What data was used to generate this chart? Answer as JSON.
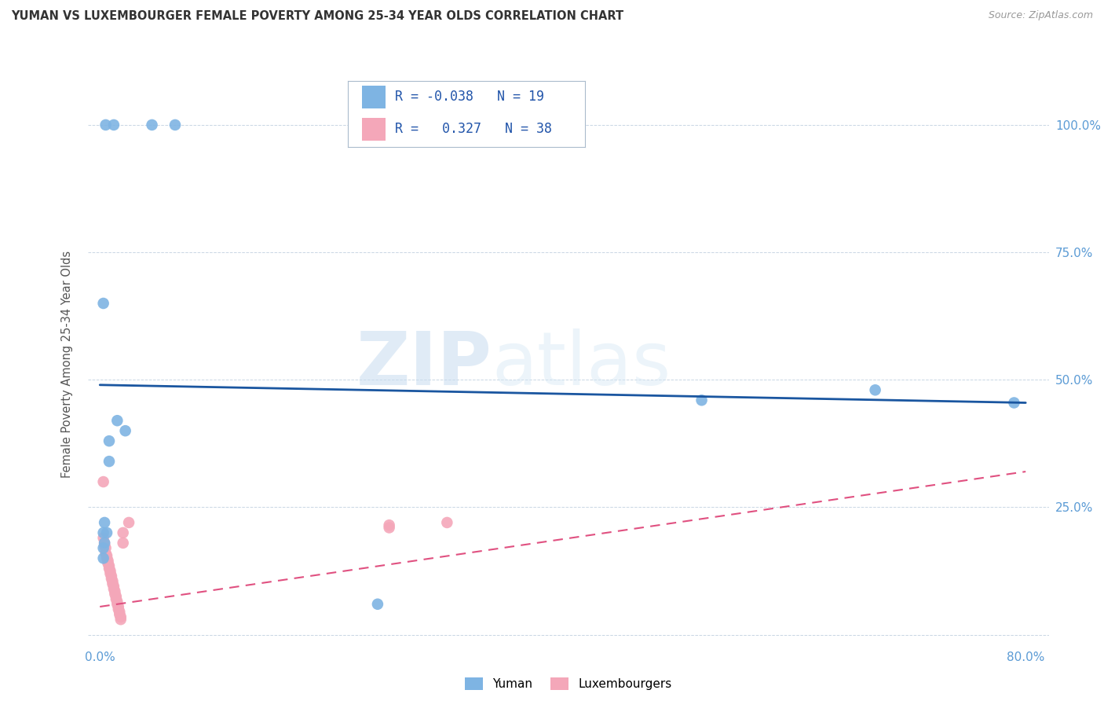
{
  "title": "YUMAN VS LUXEMBOURGER FEMALE POVERTY AMONG 25-34 YEAR OLDS CORRELATION CHART",
  "source": "Source: ZipAtlas.com",
  "ylabel": "Female Poverty Among 25-34 Year Olds",
  "xlim": [
    -0.01,
    0.82
  ],
  "ylim": [
    -0.02,
    1.08
  ],
  "x_ticks": [
    0.0,
    0.1,
    0.2,
    0.3,
    0.4,
    0.5,
    0.6,
    0.7,
    0.8
  ],
  "x_tick_labels": [
    "0.0%",
    "",
    "",
    "",
    "",
    "",
    "",
    "",
    "80.0%"
  ],
  "y_ticks": [
    0.0,
    0.25,
    0.5,
    0.75,
    1.0
  ],
  "y_tick_labels": [
    "",
    "25.0%",
    "50.0%",
    "75.0%",
    "100.0%"
  ],
  "yuman_color": "#7EB4E3",
  "luxembourger_color": "#F4A7B9",
  "yuman_line_color": "#1A56A0",
  "luxembourger_line_color": "#E05080",
  "legend_R_yuman": "-0.038",
  "legend_N_yuman": "19",
  "legend_R_luxembourger": "0.327",
  "legend_N_luxembourger": "38",
  "watermark_zip": "ZIP",
  "watermark_atlas": "atlas",
  "yuman_scatter": [
    [
      0.005,
      1.0
    ],
    [
      0.012,
      1.0
    ],
    [
      0.045,
      1.0
    ],
    [
      0.065,
      1.0
    ],
    [
      0.003,
      0.65
    ],
    [
      0.008,
      0.38
    ],
    [
      0.015,
      0.42
    ],
    [
      0.022,
      0.4
    ],
    [
      0.008,
      0.34
    ],
    [
      0.006,
      0.2
    ],
    [
      0.004,
      0.18
    ],
    [
      0.003,
      0.17
    ],
    [
      0.003,
      0.2
    ],
    [
      0.004,
      0.22
    ],
    [
      0.52,
      0.46
    ],
    [
      0.67,
      0.48
    ],
    [
      0.79,
      0.455
    ],
    [
      0.24,
      0.06
    ],
    [
      0.003,
      0.15
    ]
  ],
  "luxembourger_scatter": [
    [
      0.003,
      0.3
    ],
    [
      0.003,
      0.19
    ],
    [
      0.004,
      0.18
    ],
    [
      0.004,
      0.175
    ],
    [
      0.005,
      0.17
    ],
    [
      0.005,
      0.16
    ],
    [
      0.006,
      0.155
    ],
    [
      0.006,
      0.15
    ],
    [
      0.007,
      0.145
    ],
    [
      0.007,
      0.14
    ],
    [
      0.008,
      0.135
    ],
    [
      0.008,
      0.13
    ],
    [
      0.009,
      0.125
    ],
    [
      0.009,
      0.12
    ],
    [
      0.01,
      0.115
    ],
    [
      0.01,
      0.11
    ],
    [
      0.011,
      0.105
    ],
    [
      0.011,
      0.1
    ],
    [
      0.012,
      0.095
    ],
    [
      0.012,
      0.09
    ],
    [
      0.013,
      0.085
    ],
    [
      0.013,
      0.08
    ],
    [
      0.014,
      0.075
    ],
    [
      0.014,
      0.07
    ],
    [
      0.015,
      0.065
    ],
    [
      0.015,
      0.06
    ],
    [
      0.016,
      0.055
    ],
    [
      0.016,
      0.05
    ],
    [
      0.017,
      0.045
    ],
    [
      0.017,
      0.04
    ],
    [
      0.018,
      0.035
    ],
    [
      0.018,
      0.03
    ],
    [
      0.02,
      0.2
    ],
    [
      0.02,
      0.18
    ],
    [
      0.025,
      0.22
    ],
    [
      0.25,
      0.21
    ],
    [
      0.25,
      0.215
    ],
    [
      0.3,
      0.22
    ]
  ],
  "yuman_trendline": [
    [
      0.0,
      0.49
    ],
    [
      0.8,
      0.455
    ]
  ],
  "lux_trendline": [
    [
      0.0,
      0.055
    ],
    [
      0.8,
      0.32
    ]
  ]
}
